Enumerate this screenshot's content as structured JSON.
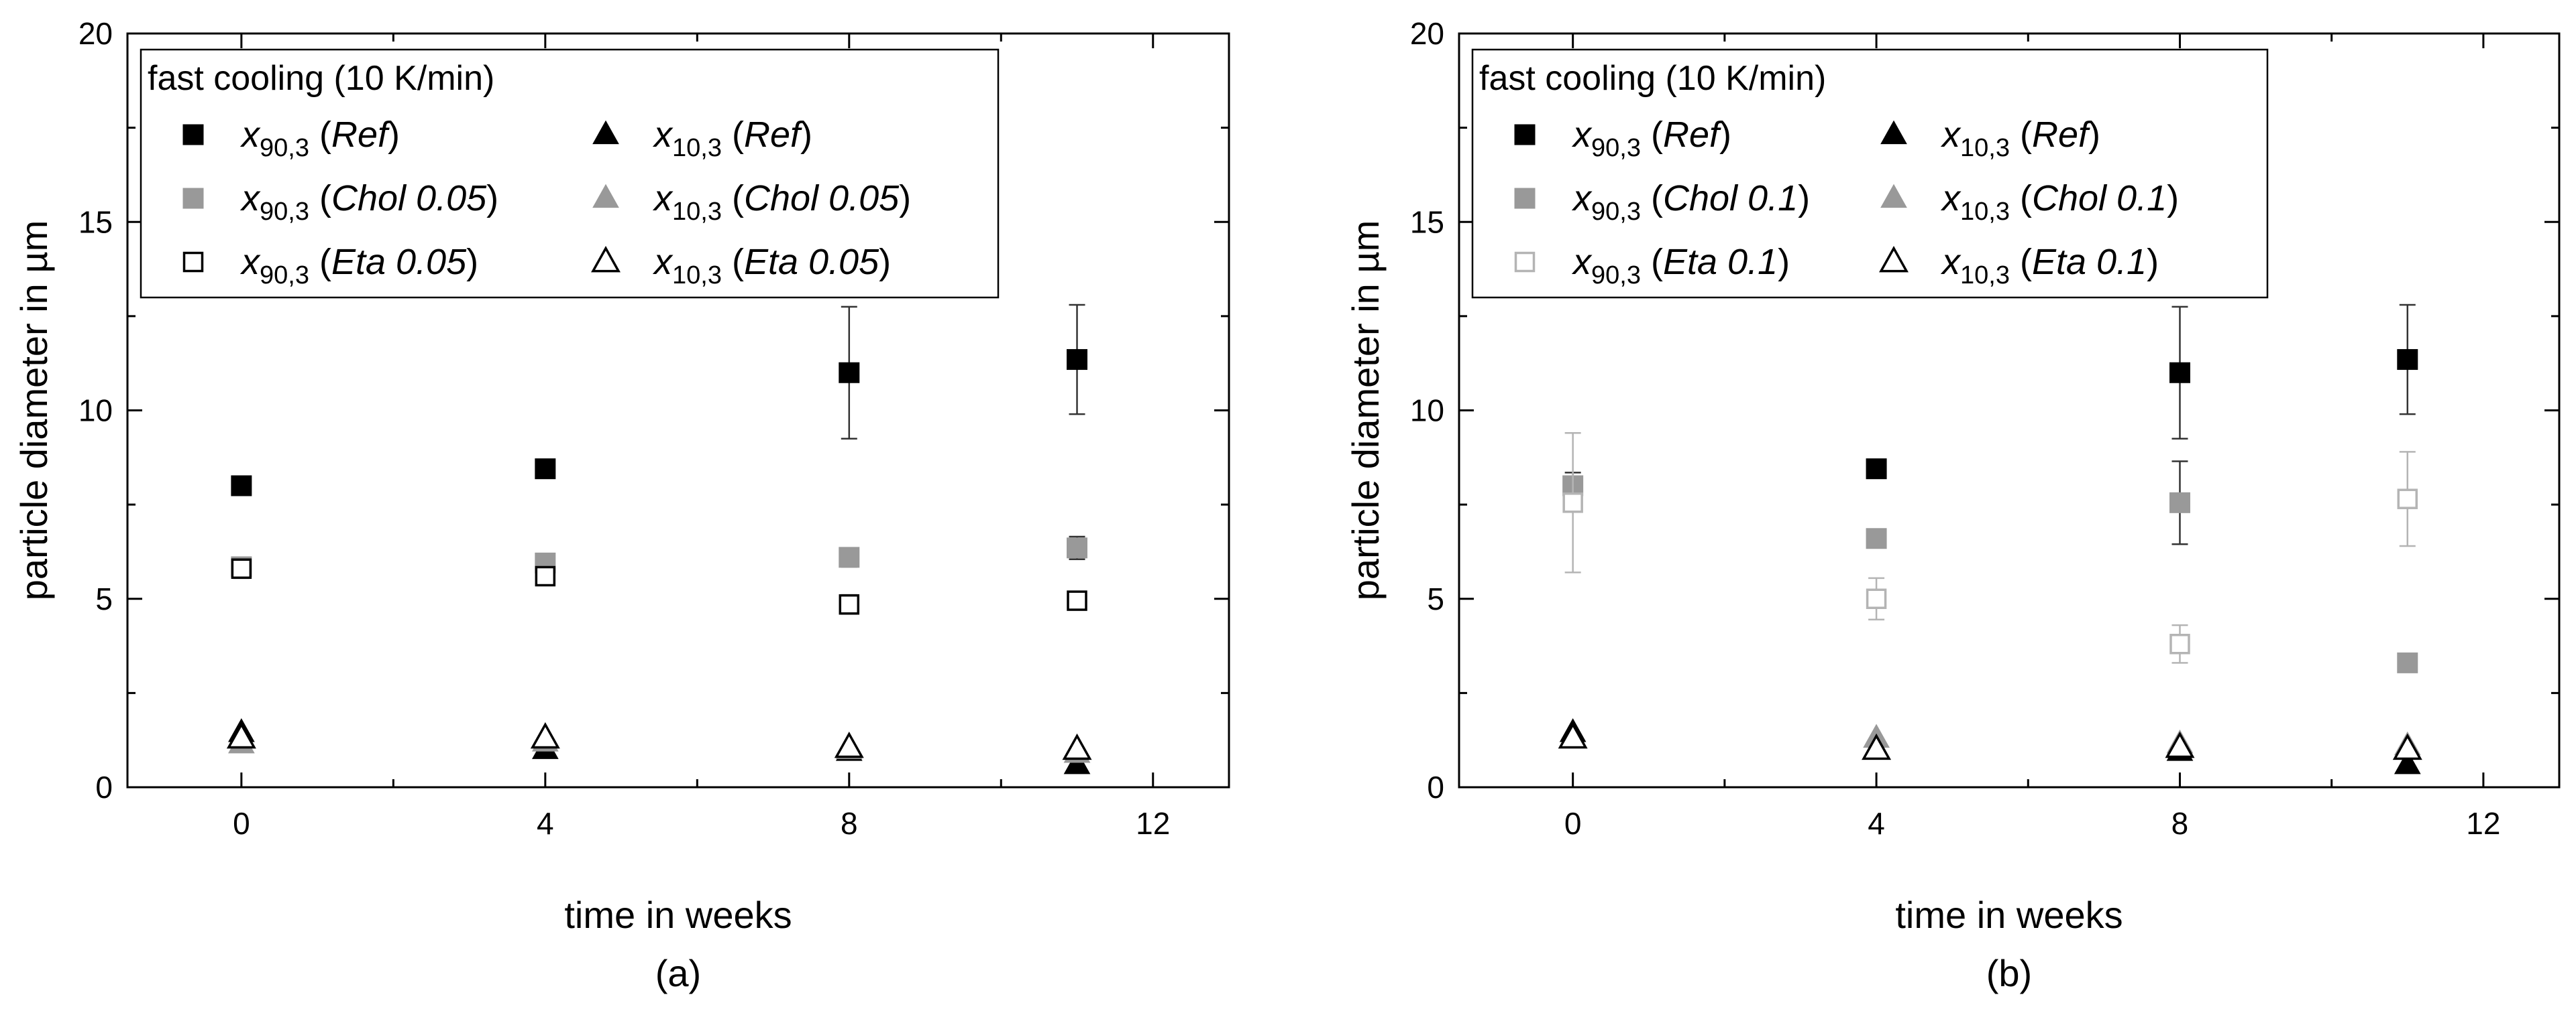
{
  "colors": {
    "black": "#000000",
    "gray": "#999999",
    "light_gray": "#b4b4b4",
    "white": "#ffffff"
  },
  "chart_data": [
    {
      "type": "scatter",
      "panel_label": "(a)",
      "xlabel": "time in weeks",
      "ylabel": "particle diameter in µm",
      "xlim": [
        -1.5,
        13
      ],
      "ylim": [
        0,
        20
      ],
      "xticks": [
        "0",
        "4",
        "8",
        "12"
      ],
      "yticks": [
        "0",
        "5",
        "10",
        "15",
        "20"
      ],
      "legend": {
        "position": "top-left",
        "title": "fast cooling (10 K/min)",
        "entries": [
          {
            "var": "x",
            "sub": "90,3",
            "cond": "Ref",
            "marker": "square-filled",
            "color": "black"
          },
          {
            "var": "x",
            "sub": "90,3",
            "cond": "Chol 0.05",
            "marker": "square-filled",
            "color": "gray"
          },
          {
            "var": "x",
            "sub": "90,3",
            "cond": "Eta 0.05",
            "marker": "square-open",
            "color": "black"
          },
          {
            "var": "x",
            "sub": "10,3",
            "cond": "Ref",
            "marker": "triangle-filled",
            "color": "black"
          },
          {
            "var": "x",
            "sub": "10,3",
            "cond": "Chol 0.05",
            "marker": "triangle-filled",
            "color": "gray"
          },
          {
            "var": "x",
            "sub": "10,3",
            "cond": "Eta 0.05",
            "marker": "triangle-open",
            "color": "black"
          }
        ]
      },
      "series": [
        {
          "name": "x90,3 (Ref)",
          "marker": "square-filled",
          "color": "black",
          "x": [
            0,
            4,
            8,
            11
          ],
          "y": [
            8.0,
            8.45,
            11.0,
            11.35
          ],
          "err": [
            0.1,
            0.1,
            1.75,
            1.45
          ]
        },
        {
          "name": "x90,3 (Chol 0.05)",
          "marker": "square-filled",
          "color": "gray",
          "x": [
            0,
            4,
            8,
            11
          ],
          "y": [
            5.85,
            5.95,
            6.1,
            6.35
          ],
          "err": [
            0.1,
            0.1,
            0.25,
            0.3
          ]
        },
        {
          "name": "x90,3 (Eta 0.05)",
          "marker": "square-open",
          "color": "black",
          "x": [
            0,
            4,
            8,
            11
          ],
          "y": [
            5.8,
            5.6,
            4.85,
            4.95
          ],
          "err": [
            0.25,
            0.2,
            0.25,
            0.2
          ]
        },
        {
          "name": "x10,3 (Ref)",
          "marker": "triangle-filled",
          "color": "black",
          "x": [
            0,
            4,
            8,
            11
          ],
          "y": [
            1.45,
            1.0,
            0.95,
            0.6
          ],
          "err": [
            0.05,
            0.05,
            0.05,
            0.05
          ]
        },
        {
          "name": "x10,3 (Chol 0.05)",
          "marker": "triangle-filled",
          "color": "gray",
          "x": [
            0,
            4,
            8,
            11
          ],
          "y": [
            1.15,
            1.2,
            1.0,
            0.9
          ],
          "err": [
            0.05,
            0.05,
            0.05,
            0.05
          ]
        },
        {
          "name": "x10,3 (Eta 0.05)",
          "marker": "triangle-open",
          "color": "black",
          "x": [
            0,
            4,
            8,
            11
          ],
          "y": [
            1.3,
            1.3,
            1.05,
            1.0
          ],
          "err": [
            0.1,
            0.1,
            0.1,
            0.1
          ]
        }
      ]
    },
    {
      "type": "scatter",
      "panel_label": "(b)",
      "xlabel": "time in weeks",
      "ylabel": "particle diameter in µm",
      "xlim": [
        -1.5,
        13
      ],
      "ylim": [
        0,
        20
      ],
      "xticks": [
        "0",
        "4",
        "8",
        "12"
      ],
      "yticks": [
        "0",
        "5",
        "10",
        "15",
        "20"
      ],
      "legend": {
        "position": "top-left",
        "title": "fast cooling (10 K/min)",
        "entries": [
          {
            "var": "x",
            "sub": "90,3",
            "cond": "Ref",
            "marker": "square-filled",
            "color": "black"
          },
          {
            "var": "x",
            "sub": "90,3",
            "cond": "Chol 0.1",
            "marker": "square-filled",
            "color": "gray"
          },
          {
            "var": "x",
            "sub": "90,3",
            "cond": "Eta 0.1",
            "marker": "square-open",
            "color": "light_gray"
          },
          {
            "var": "x",
            "sub": "10,3",
            "cond": "Ref",
            "marker": "triangle-filled",
            "color": "black"
          },
          {
            "var": "x",
            "sub": "10,3",
            "cond": "Chol 0.1",
            "marker": "triangle-filled",
            "color": "gray"
          },
          {
            "var": "x",
            "sub": "10,3",
            "cond": "Eta 0.1",
            "marker": "triangle-open",
            "color": "black"
          }
        ]
      },
      "series": [
        {
          "name": "x90,3 (Ref)",
          "marker": "square-filled",
          "color": "black",
          "x": [
            4,
            8,
            11
          ],
          "y": [
            8.45,
            11.0,
            11.35
          ],
          "err": [
            0.1,
            1.75,
            1.45
          ]
        },
        {
          "name": "x90,3 (Chol 0.1)",
          "marker": "square-filled",
          "color": "gray",
          "x": [
            0,
            4,
            8,
            11
          ],
          "y": [
            8.0,
            6.6,
            7.55,
            3.3
          ],
          "err": [
            0.35,
            0.2,
            1.1,
            0.15
          ]
        },
        {
          "name": "x90,3 (Eta 0.1)",
          "marker": "square-open",
          "color": "light_gray",
          "x": [
            0,
            4,
            8,
            11
          ],
          "y": [
            7.55,
            5.0,
            3.8,
            7.65
          ],
          "err": [
            1.85,
            0.55,
            0.5,
            1.25
          ]
        },
        {
          "name": "x10,3 (Ref)",
          "marker": "triangle-filled",
          "color": "black",
          "x": [
            0,
            4,
            8,
            11
          ],
          "y": [
            1.45,
            1.0,
            0.95,
            0.6
          ],
          "err": [
            0.05,
            0.05,
            0.05,
            0.05
          ]
        },
        {
          "name": "x10,3 (Chol 0.1)",
          "marker": "triangle-filled",
          "color": "gray",
          "x": [
            0,
            4,
            8,
            11
          ],
          "y": [
            1.3,
            1.3,
            1.15,
            1.1
          ],
          "err": [
            0.05,
            0.05,
            0.05,
            0.05
          ]
        },
        {
          "name": "x10,3 (Eta 0.1)",
          "marker": "triangle-open",
          "color": "black",
          "x": [
            0,
            4,
            8,
            11
          ],
          "y": [
            1.3,
            1.0,
            1.05,
            1.0
          ],
          "err": [
            0.1,
            0.1,
            0.1,
            0.1
          ]
        }
      ]
    }
  ]
}
